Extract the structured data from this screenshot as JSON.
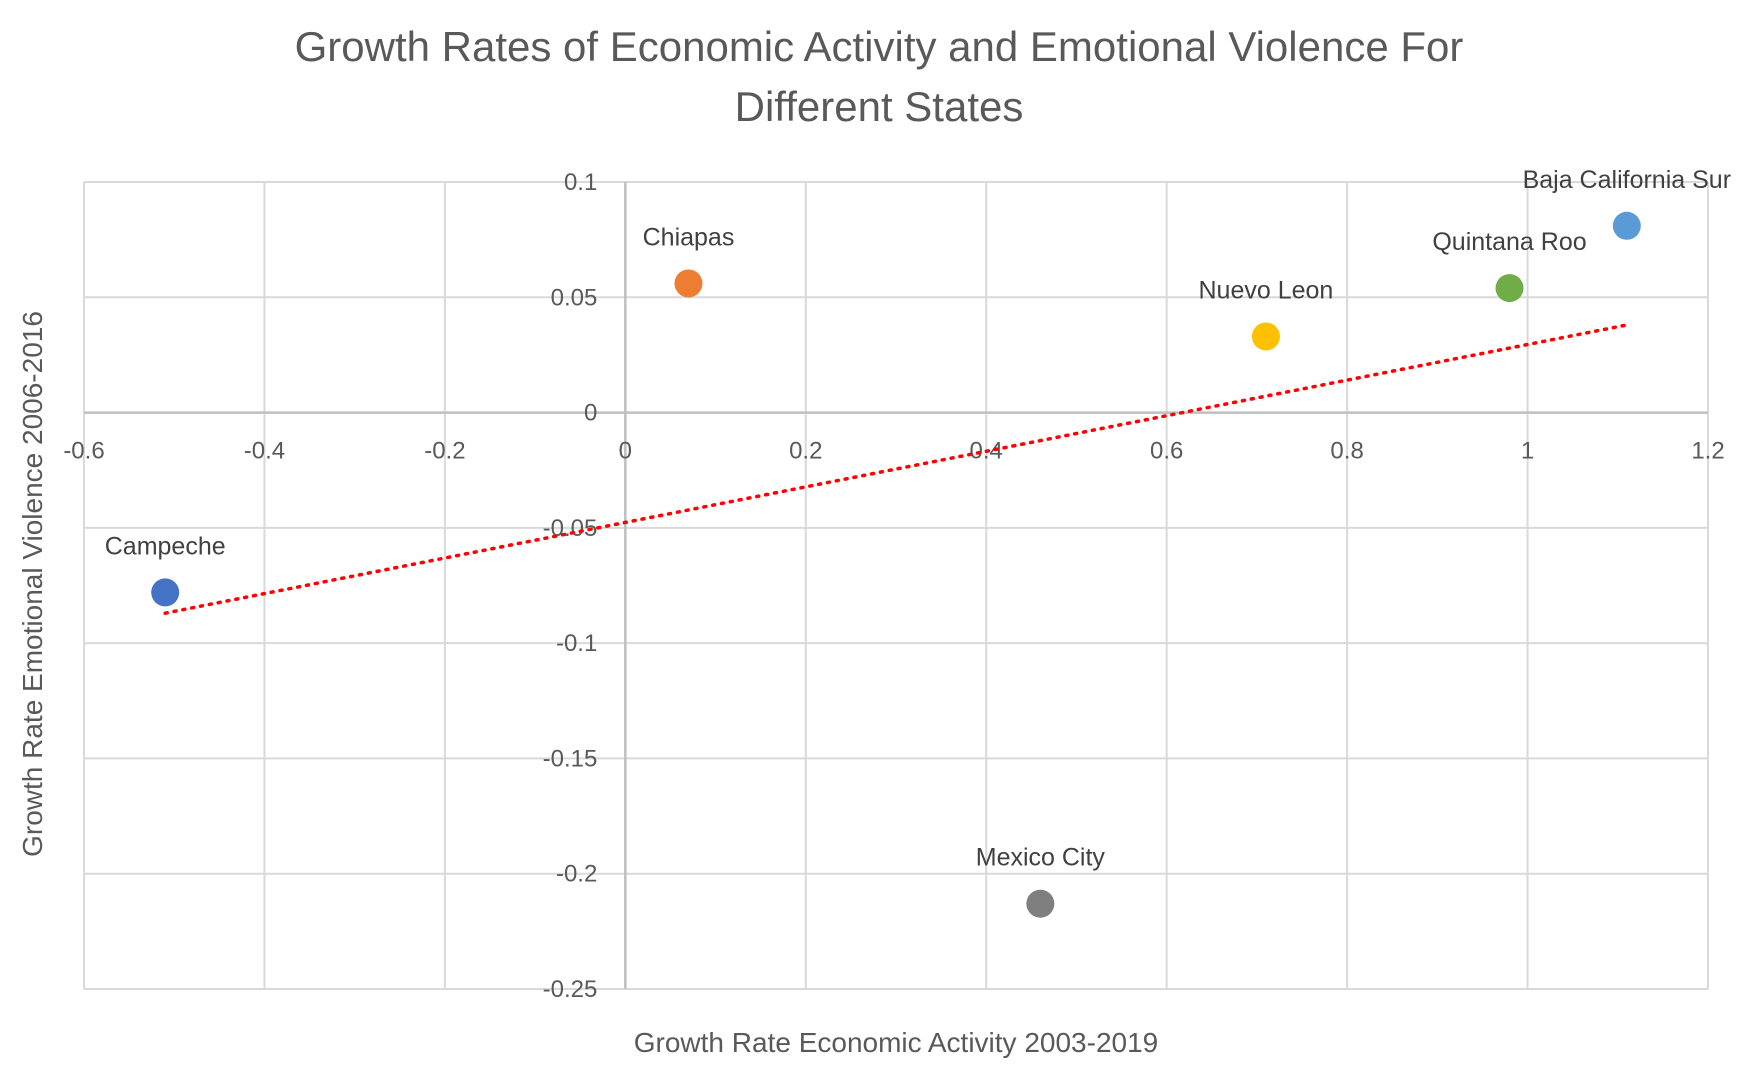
{
  "chart_data": {
    "type": "scatter",
    "title_lines": [
      "Growth Rates of Economic Activity and Emotional Violence For",
      "Different States"
    ],
    "xlabel": "Growth Rate Economic Activity 2003-2019",
    "ylabel": "Growth Rate Emotional Violence 2006-2016",
    "xlim": [
      -0.6,
      1.2
    ],
    "ylim": [
      -0.25,
      0.1
    ],
    "x_ticks": [
      -0.6,
      -0.4,
      -0.2,
      0,
      0.2,
      0.4,
      0.6,
      0.8,
      1,
      1.2
    ],
    "x_tick_labels": [
      "-0.6",
      "-0.4",
      "-0.2",
      "0",
      "0.2",
      "0.4",
      "0.6",
      "0.8",
      "1",
      "1.2"
    ],
    "y_ticks": [
      0.1,
      0.05,
      0,
      -0.05,
      -0.1,
      -0.15,
      -0.2,
      -0.25
    ],
    "y_tick_labels": [
      "0.1",
      "0.05",
      "0",
      "-0.05",
      "-0.1",
      "-0.15",
      "-0.2",
      "-0.25"
    ],
    "grid": true,
    "points": [
      {
        "label": "Campeche",
        "x": -0.51,
        "y": -0.078,
        "color": "#4472C4"
      },
      {
        "label": "Chiapas",
        "x": 0.07,
        "y": 0.056,
        "color": "#ED7D31"
      },
      {
        "label": "Mexico City",
        "x": 0.46,
        "y": -0.213,
        "color": "#7F7F7F"
      },
      {
        "label": "Nuevo Leon",
        "x": 0.71,
        "y": 0.033,
        "color": "#FFC000"
      },
      {
        "label": "Quintana Roo",
        "x": 0.98,
        "y": 0.054,
        "color": "#70AD47"
      },
      {
        "label": "Baja California Sur",
        "x": 1.11,
        "y": 0.081,
        "color": "#5B9BD5"
      }
    ],
    "trendline": {
      "type": "linear",
      "color": "#FF0000",
      "x_start": -0.51,
      "y_start": -0.087,
      "x_end": 1.11,
      "y_end": 0.038
    }
  }
}
